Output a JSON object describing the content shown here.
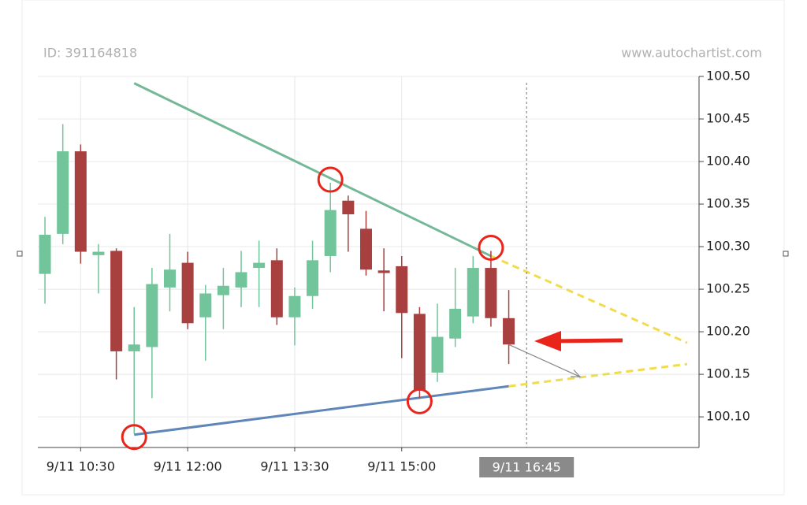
{
  "chart_data": {
    "type": "candlestick",
    "id_label": "ID: 391164818",
    "watermark": "www.autochartist.com",
    "colors": {
      "up": "#72c49a",
      "down": "#a8403f"
    },
    "x": [
      "9/11 10:00",
      "9/11 10:15",
      "9/11 10:30",
      "9/11 10:45",
      "9/11 11:00",
      "9/11 11:15",
      "9/11 11:30",
      "9/11 11:45",
      "9/11 12:00",
      "9/11 12:15",
      "9/11 12:30",
      "9/11 12:45",
      "9/11 13:00",
      "9/11 13:15",
      "9/11 13:30",
      "9/11 13:45",
      "9/11 14:00",
      "9/11 14:15",
      "9/11 14:30",
      "9/11 14:45",
      "9/11 15:00",
      "9/11 15:15",
      "9/11 15:30",
      "9/11 15:45",
      "9/11 16:00",
      "9/11 16:15",
      "9/11 16:30"
    ],
    "open": [
      100.268,
      100.315,
      100.412,
      100.29,
      100.295,
      100.177,
      100.182,
      100.252,
      100.281,
      100.217,
      100.243,
      100.252,
      100.275,
      100.284,
      100.217,
      100.242,
      100.289,
      100.354,
      100.321,
      100.272,
      100.277,
      100.221,
      100.152,
      100.192,
      100.218,
      100.275,
      100.216
    ],
    "close": [
      100.314,
      100.412,
      100.294,
      100.294,
      100.177,
      100.185,
      100.256,
      100.273,
      100.21,
      100.245,
      100.254,
      100.27,
      100.281,
      100.217,
      100.242,
      100.284,
      100.343,
      100.338,
      100.273,
      100.269,
      100.222,
      100.131,
      100.194,
      100.227,
      100.275,
      100.216,
      100.185
    ],
    "high": [
      100.335,
      100.444,
      100.42,
      100.303,
      100.298,
      100.229,
      100.275,
      100.315,
      100.294,
      100.255,
      100.275,
      100.295,
      100.307,
      100.298,
      100.252,
      100.307,
      100.375,
      100.36,
      100.342,
      100.298,
      100.289,
      100.229,
      100.233,
      100.275,
      100.289,
      100.295,
      100.249
    ],
    "low": [
      100.233,
      100.303,
      100.28,
      100.245,
      100.144,
      100.08,
      100.122,
      100.224,
      100.203,
      100.166,
      100.203,
      100.229,
      100.229,
      100.208,
      100.184,
      100.227,
      100.27,
      100.294,
      100.266,
      100.224,
      100.169,
      100.122,
      100.141,
      100.182,
      100.21,
      100.206,
      100.162
    ],
    "trendlines": [
      {
        "color": "#74b898",
        "x": [
          "9/11 11:15",
          "9/11 16:15"
        ],
        "values": [
          100.492,
          100.289
        ]
      },
      {
        "color": "#f1dc4e",
        "dashed": true,
        "x": [
          "9/11 16:15",
          "9/11 19:00"
        ],
        "values": [
          100.289,
          100.187
        ]
      },
      {
        "color": "#5f86b8",
        "x": [
          "9/11 11:15",
          "9/11 16:30"
        ],
        "values": [
          100.079,
          100.136
        ]
      },
      {
        "color": "#f1dc4e",
        "dashed": true,
        "x": [
          "9/11 16:30",
          "9/11 19:00"
        ],
        "values": [
          100.136,
          100.162
        ]
      }
    ],
    "forecast": {
      "color": "#888888",
      "x": [
        "9/11 16:30",
        "9/11 17:30"
      ],
      "values": [
        100.185,
        100.147
      ]
    },
    "cursor": {
      "x": "9/11 16:45"
    },
    "xlim": [
      "9/11 09:54",
      "9/11 19:10"
    ],
    "xticks": [
      "9/11 10:30",
      "9/11 12:00",
      "9/11 13:30",
      "9/11 15:00"
    ],
    "ylim": [
      100.064,
      100.5
    ],
    "yticks": [
      {
        "value": 100.1,
        "label": "100.10"
      },
      {
        "value": 100.15,
        "label": "100.15"
      },
      {
        "value": 100.2,
        "label": "100.20"
      },
      {
        "value": 100.25,
        "label": "100.25"
      },
      {
        "value": 100.3,
        "label": "100.30"
      },
      {
        "value": 100.35,
        "label": "100.35"
      },
      {
        "value": 100.4,
        "label": "100.40"
      },
      {
        "value": 100.45,
        "label": "100.45"
      },
      {
        "value": 100.5,
        "label": "100.50"
      }
    ],
    "grid": true
  }
}
